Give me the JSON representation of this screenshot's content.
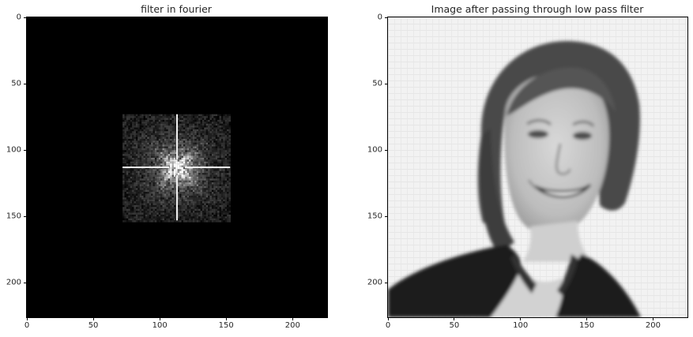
{
  "chart_data": [
    {
      "type": "heatmap",
      "title": "filter in fourier",
      "xlim": [
        0,
        226
      ],
      "ylim": [
        226,
        0
      ],
      "xticks": [
        0,
        50,
        100,
        150,
        200
      ],
      "yticks": [
        0,
        50,
        100,
        150,
        200
      ],
      "background": "#000000",
      "filter_window": {
        "x": [
          72,
          153
        ],
        "y": [
          73,
          153
        ]
      },
      "center": [
        113,
        113
      ],
      "colormap": "gray"
    },
    {
      "type": "heatmap",
      "title": "Image after passing through low pass filter",
      "xlim": [
        0,
        226
      ],
      "ylim": [
        226,
        0
      ],
      "xticks": [
        0,
        50,
        100,
        150,
        200
      ],
      "yticks": [
        0,
        50,
        100,
        150,
        200
      ],
      "colormap": "gray"
    }
  ]
}
